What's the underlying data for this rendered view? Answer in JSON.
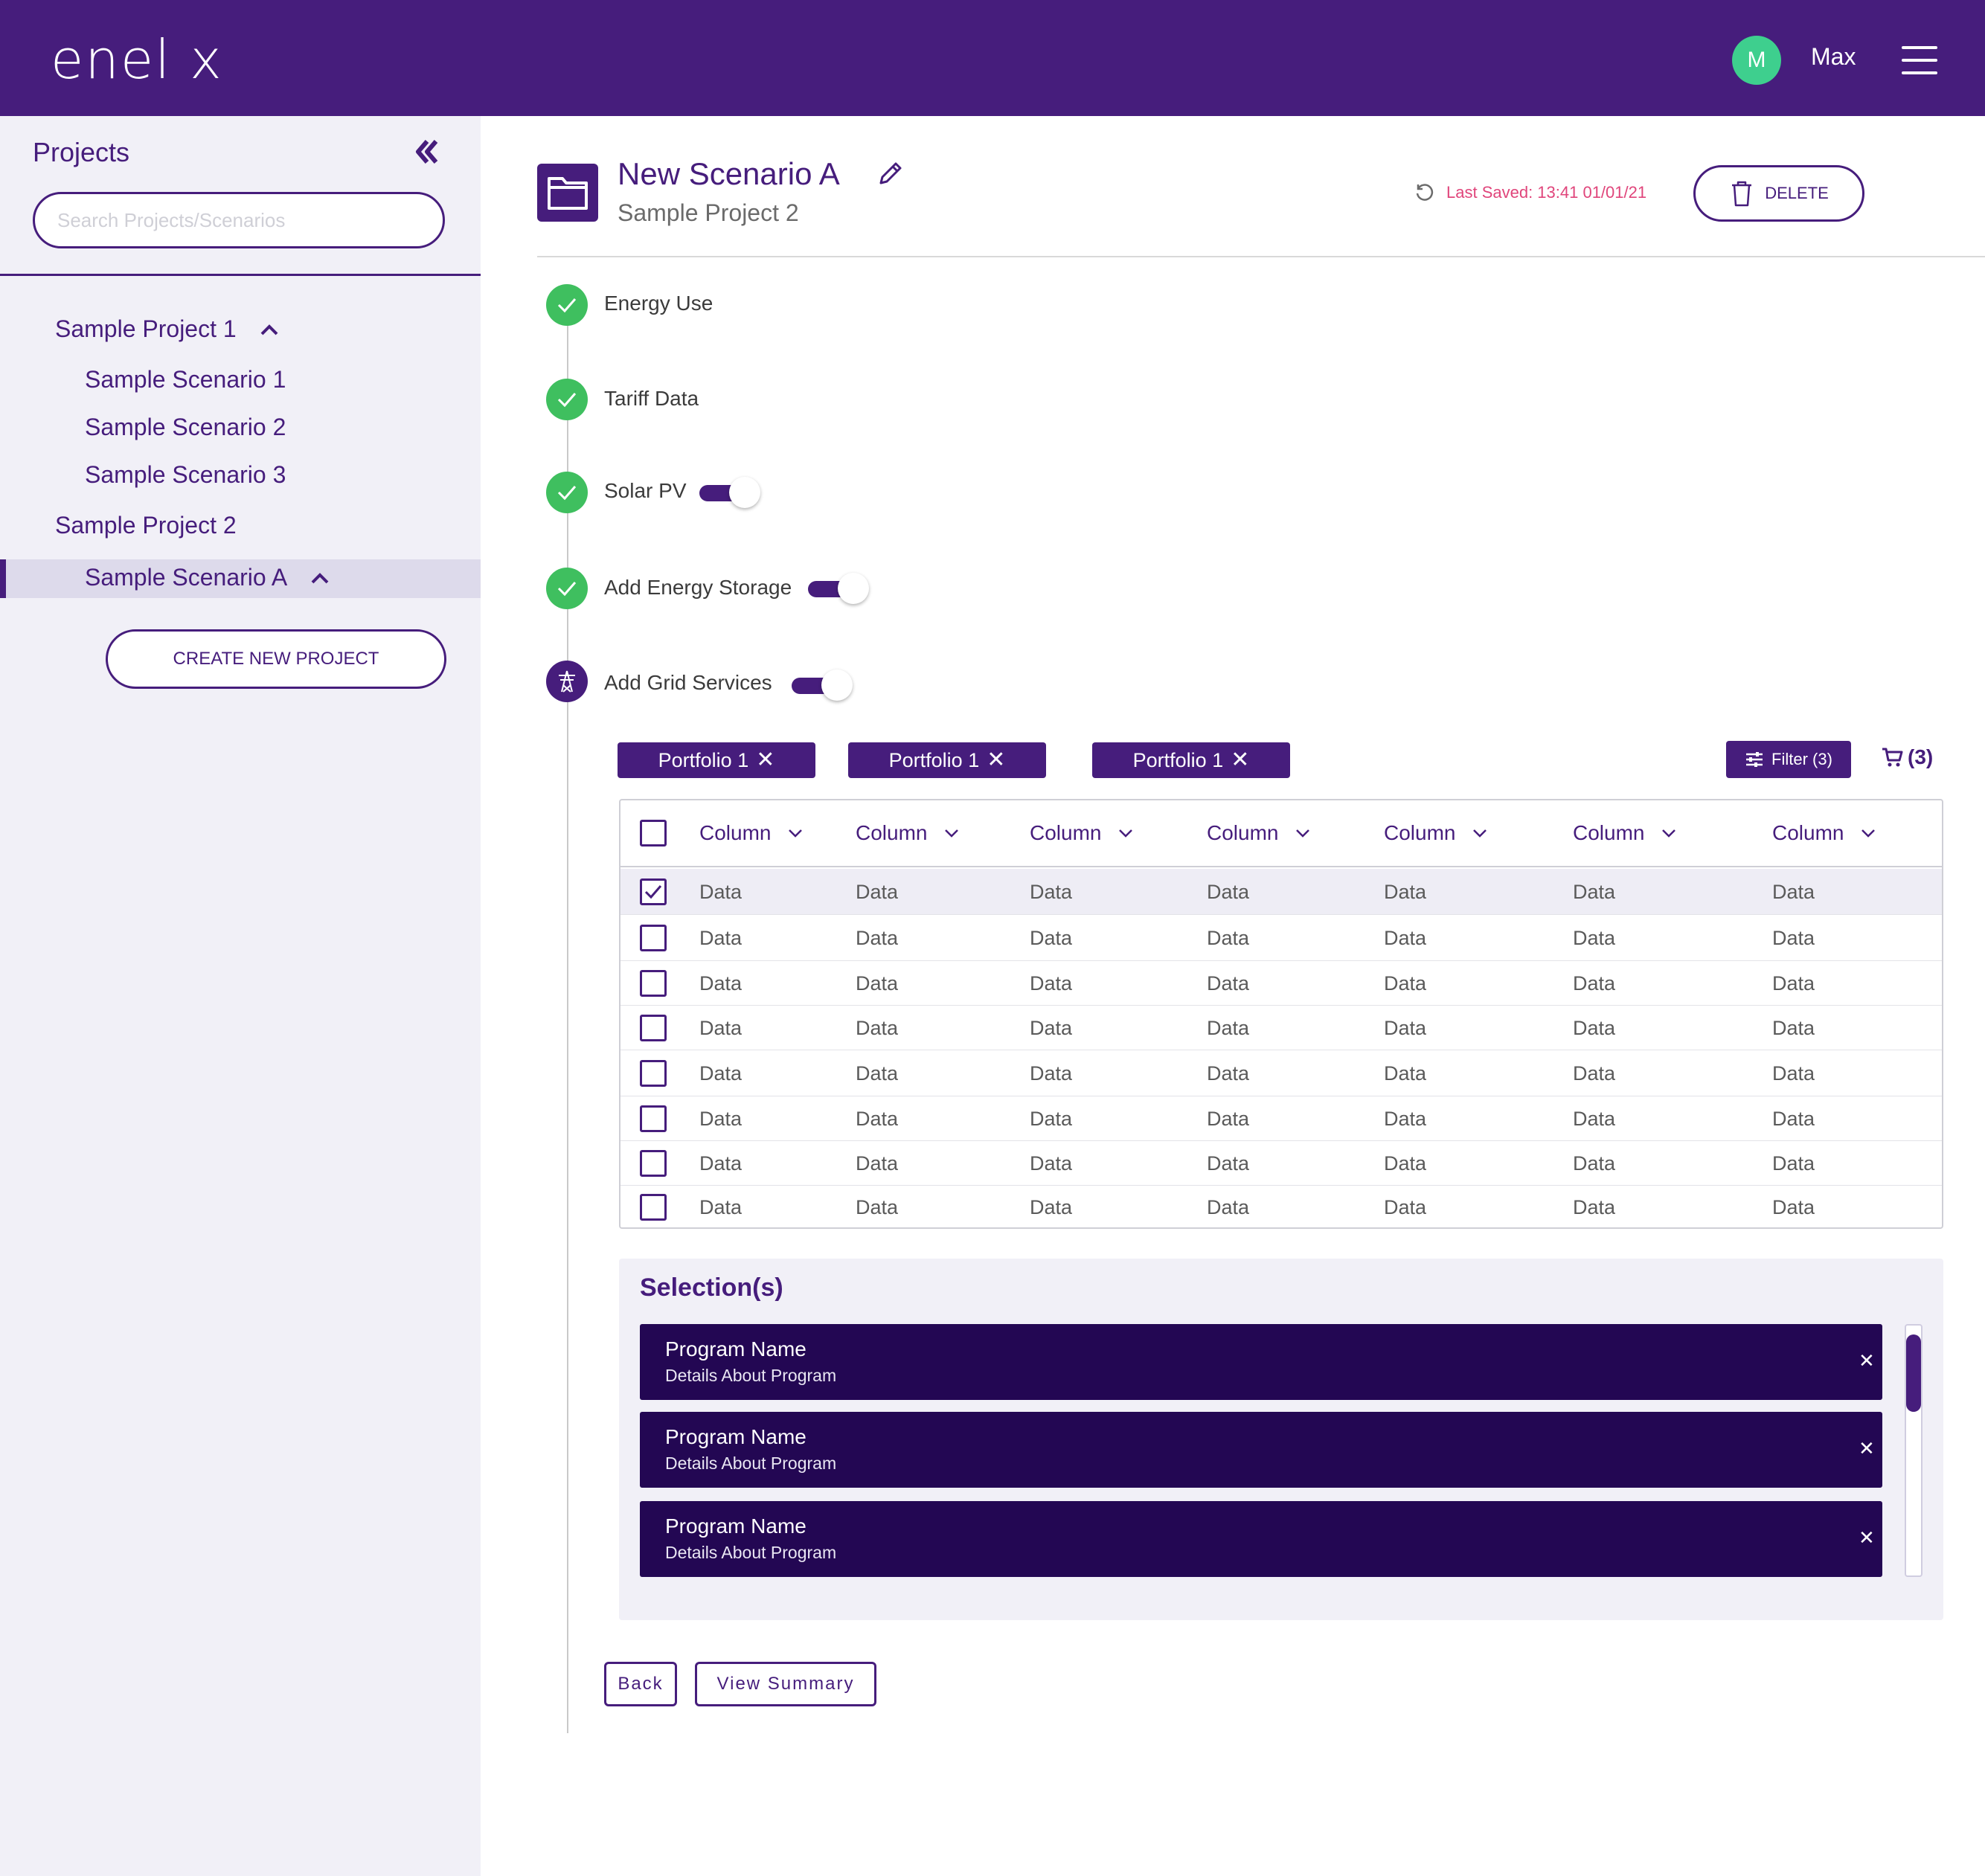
{
  "app": {
    "logo_text": "enel x",
    "user": {
      "initial": "M",
      "name": "Max"
    },
    "colors": {
      "brand": "#461d7c",
      "success": "#3fbf5f",
      "avatar": "#3ecf8e",
      "alert": "#e0457b",
      "card": "#230753"
    }
  },
  "sidebar": {
    "title": "Projects",
    "search_placeholder": "Search Projects/Scenarios",
    "tree": {
      "project1": "Sample Project 1",
      "scenario1": "Sample Scenario 1",
      "scenario2": "Sample Scenario 2",
      "scenario3": "Sample Scenario 3",
      "project2": "Sample Project 2",
      "scenarioA": "Sample Scenario A"
    },
    "create_button": "CREATE NEW PROJECT"
  },
  "header": {
    "scenario_title": "New Scenario A",
    "project_name": "Sample Project 2",
    "last_saved": "Last Saved: 13:41 01/01/21",
    "delete_label": "DELETE"
  },
  "steps": {
    "energy_use": "Energy Use",
    "tariff_data": "Tariff Data",
    "solar_pv": "Solar PV",
    "energy_storage": "Add Energy Storage",
    "grid_services": "Add Grid Services",
    "toggles": {
      "solar_pv": true,
      "energy_storage": true,
      "grid_services": true
    }
  },
  "chips": [
    "Portfolio 1",
    "Portfolio 1",
    "Portfolio 1"
  ],
  "filter_label": "Filter (3)",
  "cart_count": "(3)",
  "table": {
    "columns": [
      "Column",
      "Column",
      "Column",
      "Column",
      "Column",
      "Column",
      "Column"
    ],
    "rows": [
      [
        "Data",
        "Data",
        "Data",
        "Data",
        "Data",
        "Data",
        "Data"
      ],
      [
        "Data",
        "Data",
        "Data",
        "Data",
        "Data",
        "Data",
        "Data"
      ],
      [
        "Data",
        "Data",
        "Data",
        "Data",
        "Data",
        "Data",
        "Data"
      ],
      [
        "Data",
        "Data",
        "Data",
        "Data",
        "Data",
        "Data",
        "Data"
      ],
      [
        "Data",
        "Data",
        "Data",
        "Data",
        "Data",
        "Data",
        "Data"
      ],
      [
        "Data",
        "Data",
        "Data",
        "Data",
        "Data",
        "Data",
        "Data"
      ],
      [
        "Data",
        "Data",
        "Data",
        "Data",
        "Data",
        "Data",
        "Data"
      ],
      [
        "Data",
        "Data",
        "Data",
        "Data",
        "Data",
        "Data",
        "Data"
      ]
    ],
    "checked_rows": [
      0
    ]
  },
  "selections": {
    "title": "Selection(s)",
    "items": [
      {
        "name": "Program Name",
        "details": "Details About Program"
      },
      {
        "name": "Program Name",
        "details": "Details About Program"
      },
      {
        "name": "Program Name",
        "details": "Details About Program"
      }
    ]
  },
  "footer": {
    "back_label": "Back",
    "summary_label": "View Summary"
  }
}
